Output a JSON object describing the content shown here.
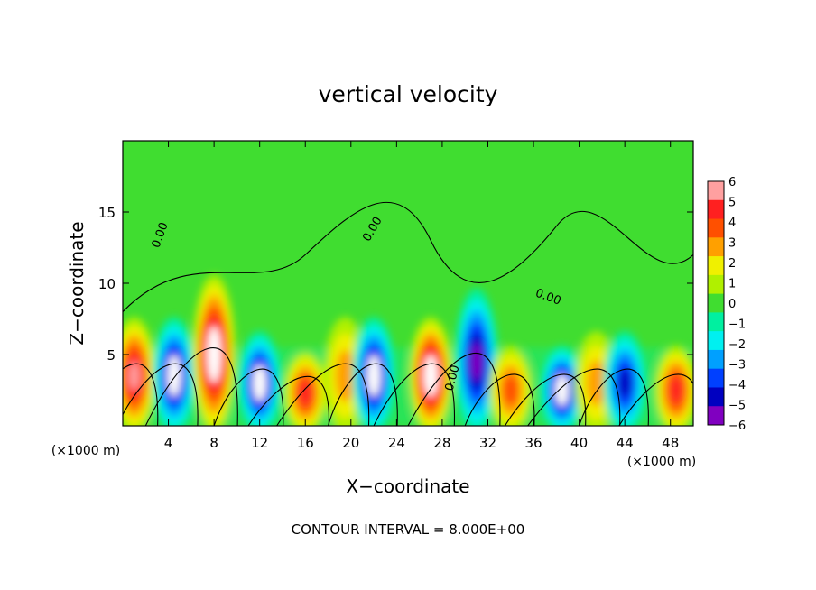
{
  "chart_data": {
    "type": "heatmap",
    "title": "vertical velocity",
    "xlabel": "X−coordinate",
    "ylabel": "Z−coordinate",
    "x_unit_left": "(×1000 m)",
    "x_unit_right": "(×1000 m)",
    "footer": "CONTOUR INTERVAL = 8.000E+00",
    "contour_label": "0.00",
    "xlim": [
      0,
      50
    ],
    "ylim": [
      0,
      20
    ],
    "x_ticks": [
      4,
      8,
      12,
      16,
      20,
      24,
      28,
      32,
      36,
      40,
      44,
      48
    ],
    "x_tick_labels": [
      "4",
      "8",
      "12",
      "16",
      "20",
      "24",
      "28",
      "32",
      "36",
      "40",
      "44",
      "48"
    ],
    "y_ticks": [
      5,
      10,
      15
    ],
    "y_tick_labels": [
      "5",
      "10",
      "15"
    ],
    "colorbar": {
      "values": [
        6,
        5,
        4,
        3,
        2,
        1,
        0,
        -1,
        -2,
        -3,
        -4,
        -5,
        -6
      ],
      "labels": [
        "6",
        "5",
        "4",
        "3",
        "2",
        "1",
        "0",
        "−1",
        "−2",
        "−3",
        "−4",
        "−5",
        "−6"
      ],
      "colors": [
        "#ffa0a0",
        "#ff2020",
        "#ff5000",
        "#ffa000",
        "#f0f000",
        "#b0f000",
        "#40dd30",
        "#00f0a0",
        "#00f0f0",
        "#00a0ff",
        "#0040ff",
        "#0000c0",
        "#8000c0"
      ]
    },
    "features": [
      {
        "x": 1.0,
        "z": 3.5,
        "sign": 1,
        "amp": 5.5
      },
      {
        "x": 4.5,
        "z": 3.5,
        "sign": -1,
        "amp": 6.0
      },
      {
        "x": 8.0,
        "z": 5.0,
        "sign": 1,
        "amp": 6.5
      },
      {
        "x": 12.0,
        "z": 3.0,
        "sign": -1,
        "amp": 6.0
      },
      {
        "x": 16.0,
        "z": 2.3,
        "sign": 1,
        "amp": 4.5
      },
      {
        "x": 19.5,
        "z": 3.5,
        "sign": 1,
        "amp": 3.0
      },
      {
        "x": 22.0,
        "z": 3.5,
        "sign": -1,
        "amp": 6.0
      },
      {
        "x": 27.0,
        "z": 3.5,
        "sign": 1,
        "amp": 6.5
      },
      {
        "x": 31.0,
        "z": 4.5,
        "sign": -1,
        "amp": 5.5
      },
      {
        "x": 34.0,
        "z": 2.5,
        "sign": 1,
        "amp": 4.0
      },
      {
        "x": 38.5,
        "z": 2.5,
        "sign": -1,
        "amp": 6.0
      },
      {
        "x": 41.5,
        "z": 3.0,
        "sign": 1,
        "amp": 3.0
      },
      {
        "x": 44.0,
        "z": 3.0,
        "sign": -1,
        "amp": 5.0
      },
      {
        "x": 48.5,
        "z": 2.5,
        "sign": 1,
        "amp": 4.5
      }
    ]
  }
}
